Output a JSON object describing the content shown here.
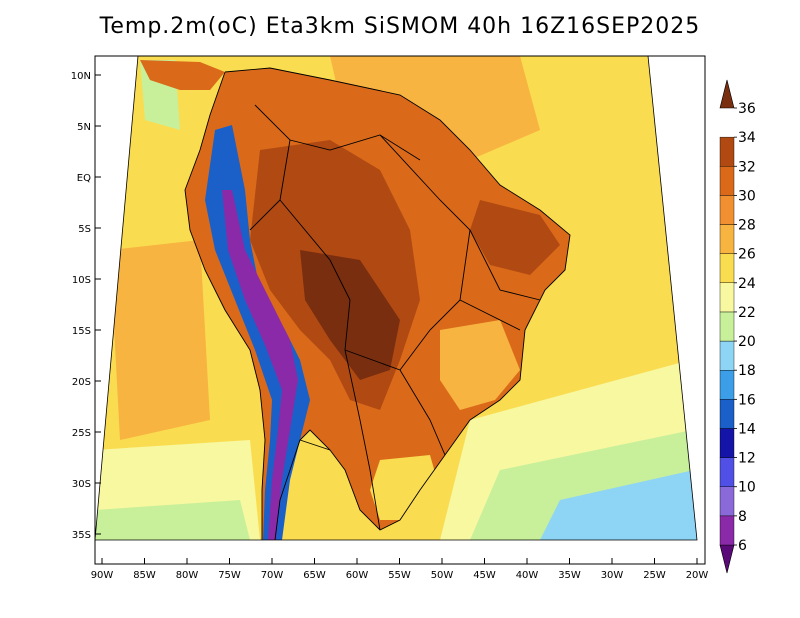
{
  "title": "Temp.2m(oC) Eta3km SiSMOM 40h 16Z16SEP2025",
  "lat_ticks": [
    "10N",
    "5N",
    "EQ",
    "5S",
    "10S",
    "15S",
    "20S",
    "25S",
    "30S",
    "35S"
  ],
  "lon_ticks": [
    "90W",
    "85W",
    "80W",
    "75W",
    "70W",
    "65W",
    "60W",
    "55W",
    "50W",
    "45W",
    "40W",
    "35W",
    "30W",
    "25W",
    "20W"
  ],
  "colorbar": {
    "labels": [
      "6",
      "8",
      "10",
      "12",
      "14",
      "16",
      "18",
      "20",
      "22",
      "24",
      "26",
      "28",
      "30",
      "32",
      "34",
      "36"
    ],
    "colors": [
      "#5a0a78",
      "#8a2aa8",
      "#8a6ad8",
      "#5050e6",
      "#1414a8",
      "#1a60c8",
      "#3c9ee6",
      "#8ed4f4",
      "#c8f09a",
      "#f8f8a0",
      "#fadc50",
      "#f8b440",
      "#f09030",
      "#da6a1a",
      "#b04a12",
      "#7a2e10"
    ]
  },
  "map_colors": {
    "ocean_main": "#fadc50",
    "ocean_warm": "#f8b440",
    "ocean_cool": "#f8f8a0",
    "ocean_cold": "#c8f09a",
    "ocean_colder": "#8ed4f4",
    "land_hot": "#da6a1a",
    "land_hotter": "#b04a12",
    "land_hottest": "#7a2e10",
    "andes_cold": "#1a60c8",
    "andes_coldest": "#8a2aa8"
  }
}
